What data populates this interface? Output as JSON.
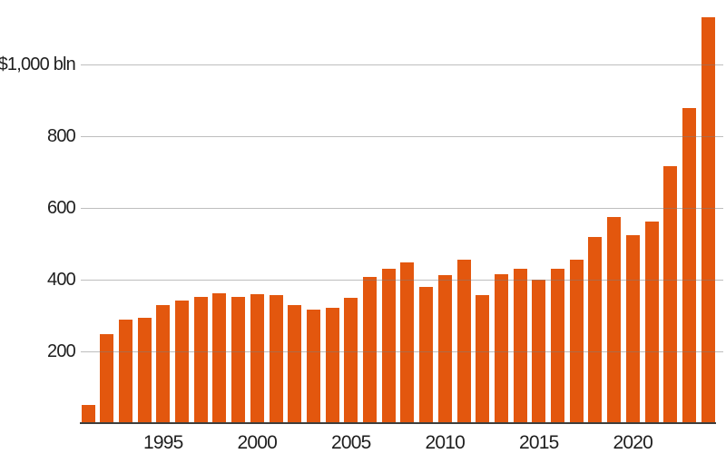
{
  "chart_data": {
    "type": "bar",
    "title": "",
    "x": [
      1991,
      1992,
      1993,
      1994,
      1995,
      1996,
      1997,
      1998,
      1999,
      2000,
      2001,
      2002,
      2003,
      2004,
      2005,
      2006,
      2007,
      2008,
      2009,
      2010,
      2011,
      2012,
      2013,
      2014,
      2015,
      2016,
      2017,
      2018,
      2019,
      2020,
      2021,
      2022,
      2023,
      2024
    ],
    "values": [
      51,
      247,
      289,
      293,
      328,
      342,
      353,
      363,
      353,
      360,
      358,
      328,
      317,
      321,
      350,
      408,
      430,
      449,
      381,
      412,
      455,
      357,
      415,
      431,
      401,
      430,
      456,
      519,
      574,
      524,
      561,
      717,
      878,
      1132
    ],
    "yticks": [
      {
        "value": 200,
        "label": "200"
      },
      {
        "value": 400,
        "label": "400"
      },
      {
        "value": 600,
        "label": "600"
      },
      {
        "value": 800,
        "label": "800"
      },
      {
        "value": 1000,
        "label": "$1,000 bln"
      }
    ],
    "xticks": [
      {
        "year": 1995,
        "label": "1995"
      },
      {
        "year": 2000,
        "label": "2000"
      },
      {
        "year": 2005,
        "label": "2005"
      },
      {
        "year": 2010,
        "label": "2010"
      },
      {
        "year": 2015,
        "label": "2015"
      },
      {
        "year": 2020,
        "label": "2020"
      }
    ],
    "ylim": [
      0,
      1180
    ],
    "grid": "on",
    "legend": "none",
    "bar_color": "#e3570e",
    "grid_color_rgba": "rgba(125,125,125,0.5)",
    "axis_color": "#3e3e3c",
    "text_color": "#1f1f1f"
  }
}
